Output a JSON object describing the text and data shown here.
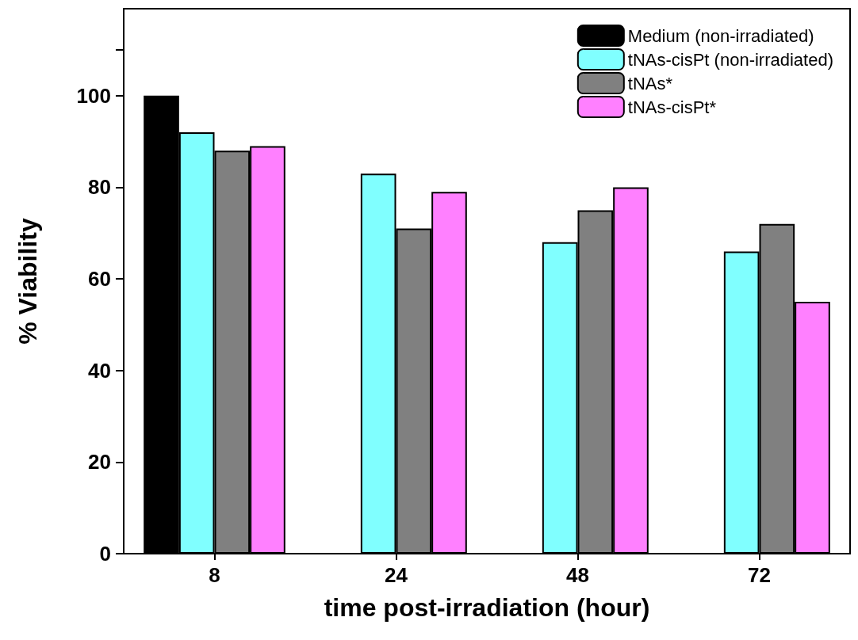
{
  "chart_data": {
    "type": "bar",
    "xlabel": "time post-irradiation (hour)",
    "ylabel": "% Viability",
    "categories": [
      "8",
      "24",
      "48",
      "72"
    ],
    "series": [
      {
        "name": "Medium (non-irradiated)",
        "color": "#000000",
        "values": [
          100,
          null,
          null,
          null
        ]
      },
      {
        "name": "tNAs-cisPt (non-irradiated)",
        "color": "#80ffff",
        "values": [
          92,
          83,
          68,
          66
        ]
      },
      {
        "name": "tNAs*",
        "color": "#808080",
        "values": [
          88,
          71,
          75,
          72
        ]
      },
      {
        "name": "tNAs-cisPt*",
        "color": "#ff80ff",
        "values": [
          89,
          79,
          80,
          55
        ]
      }
    ],
    "ylim": [
      0,
      119
    ],
    "yticks": [
      0,
      20,
      40,
      60,
      80,
      100,
      {
        "value": 110,
        "label": null
      }
    ],
    "grid": false,
    "legend": "top right"
  }
}
